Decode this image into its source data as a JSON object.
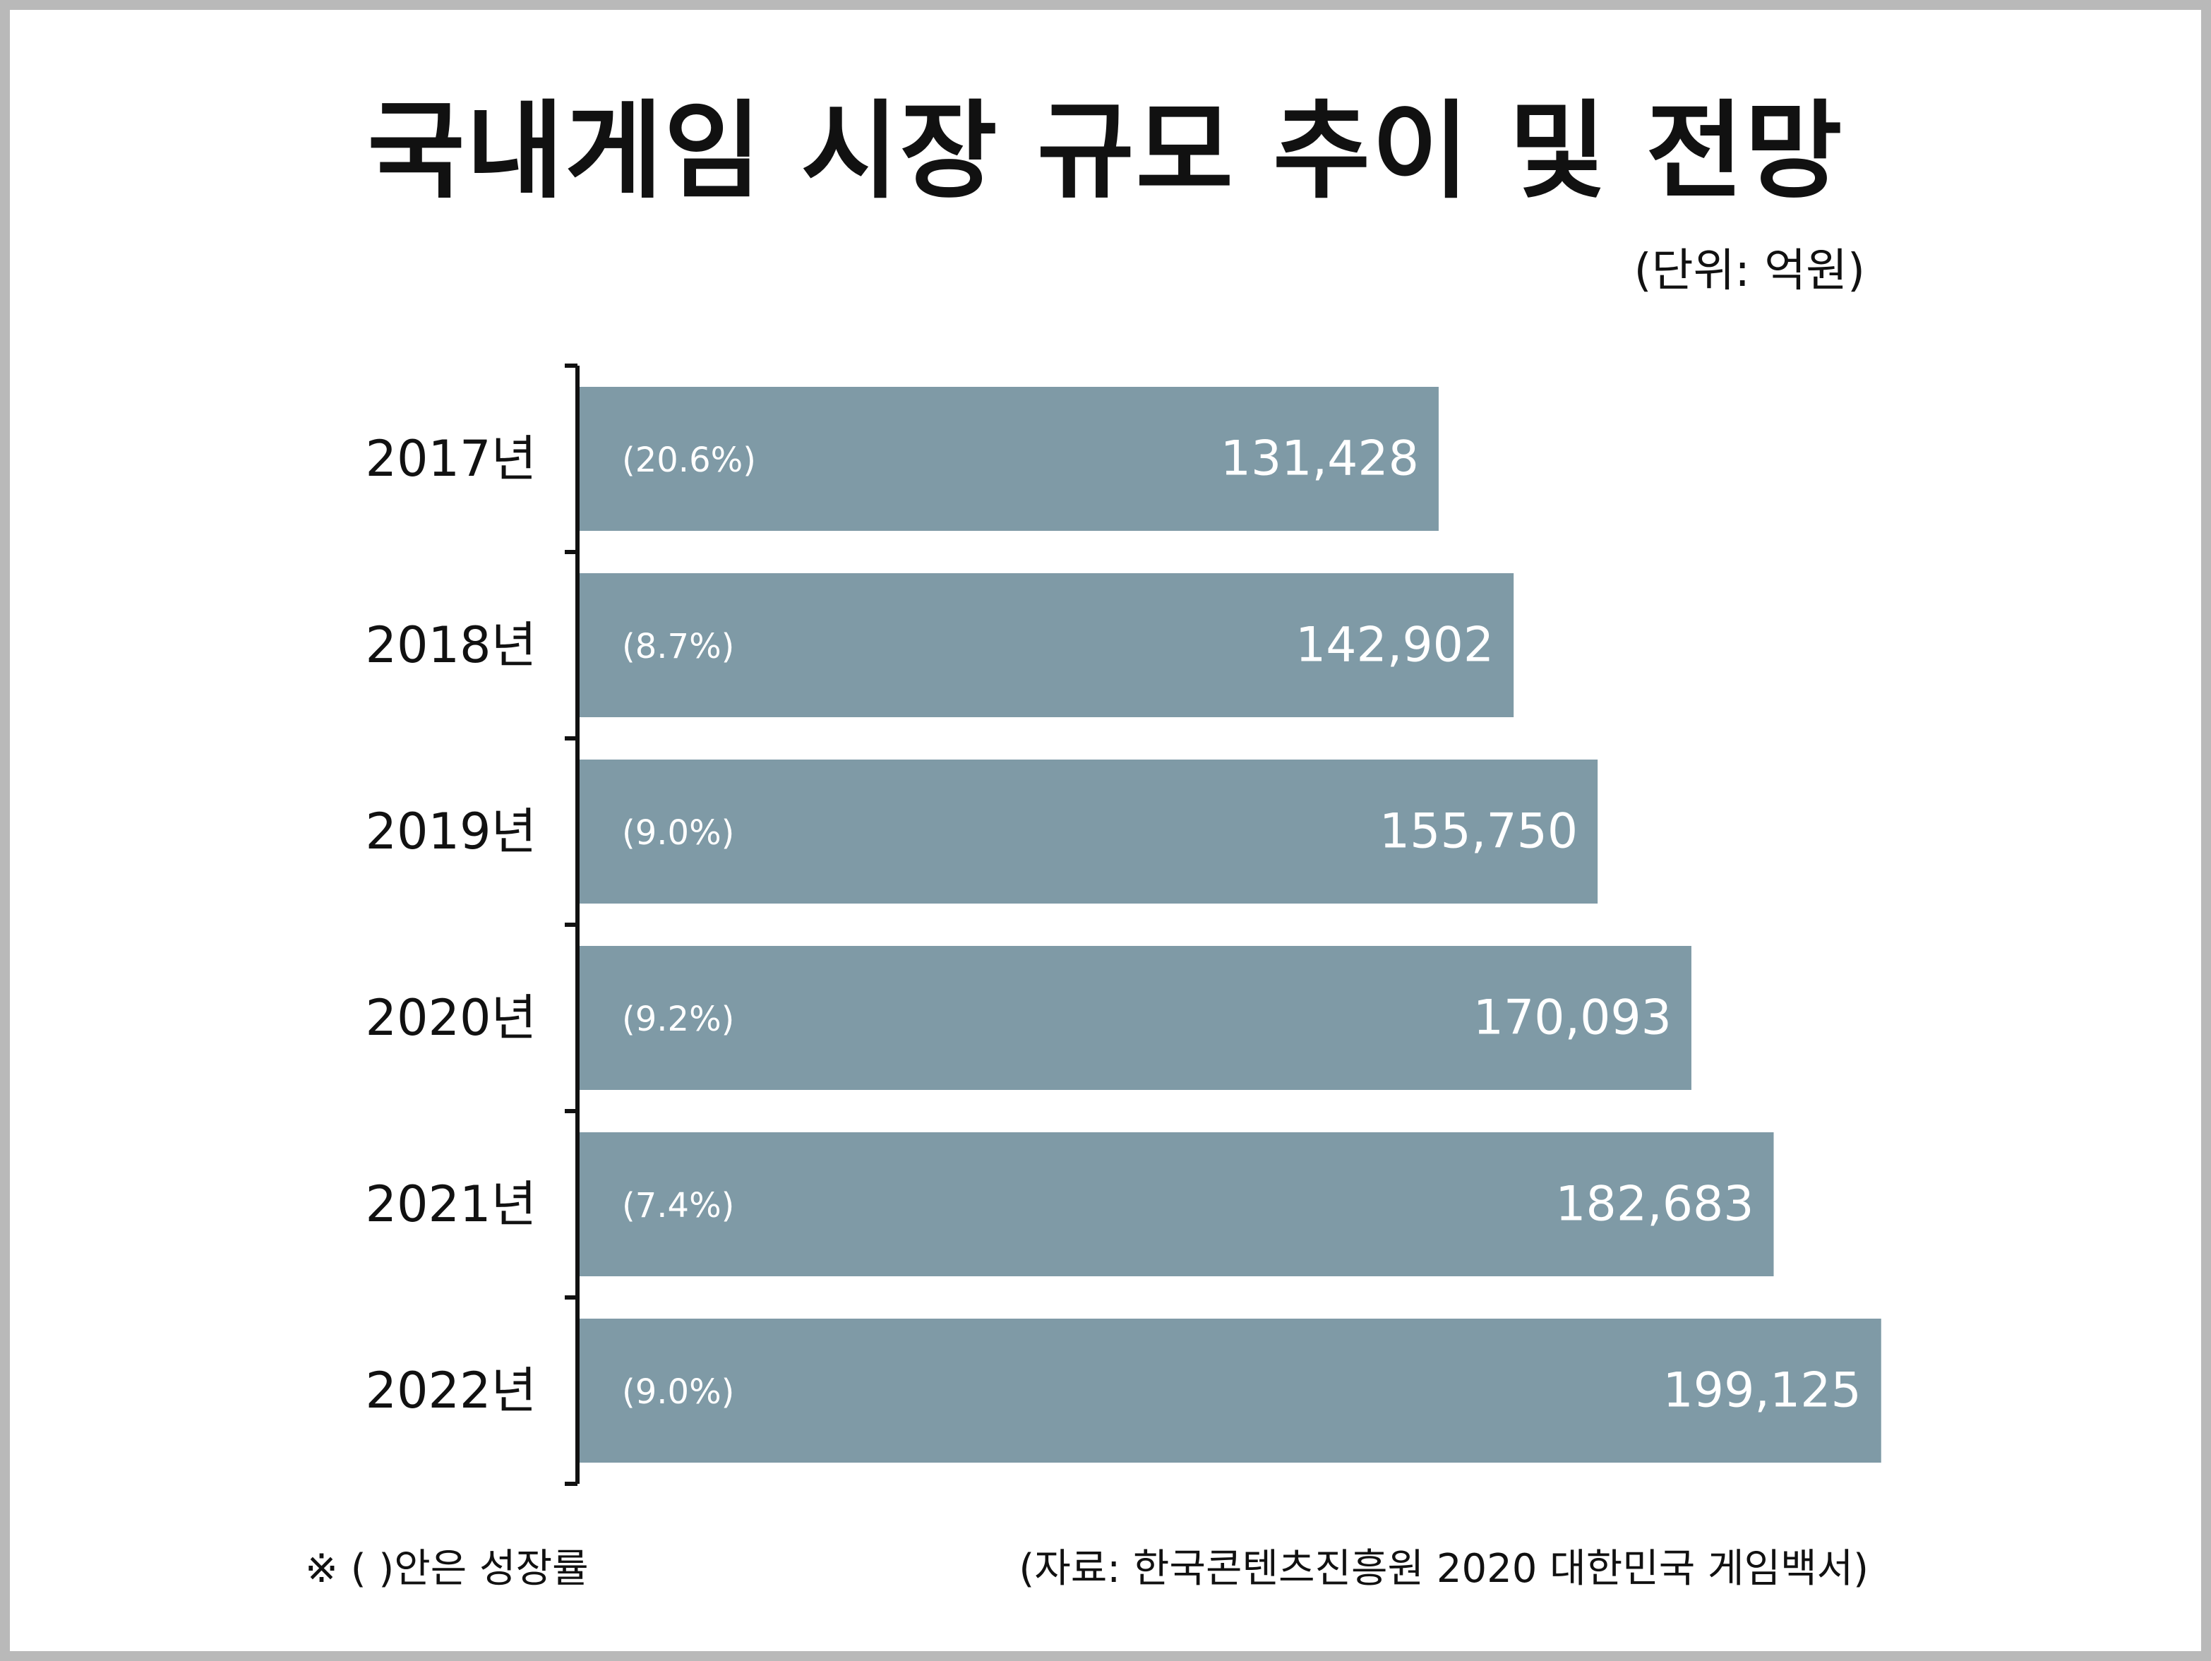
{
  "title": "국내게임 시장 규모 추이 및 전망",
  "unit": "(단위: 억원)",
  "note": "※ ( )안은 성장률",
  "source": "(자료: 한국콘텐츠진흥원 2020 대한민국 게임백서)",
  "colors": {
    "bar": "#7f9aa6",
    "text": "#111111",
    "bar_text": "#ffffff",
    "frame": "#b9b9b9"
  },
  "chart_data": {
    "type": "bar",
    "orientation": "horizontal",
    "categories": [
      "2017년",
      "2018년",
      "2019년",
      "2020년",
      "2021년",
      "2022년"
    ],
    "values": [
      131428,
      142902,
      155750,
      170093,
      182683,
      199125
    ],
    "value_labels": [
      "131,428",
      "142,902",
      "155,750",
      "170,093",
      "182,683",
      "199,125"
    ],
    "growth_labels": [
      "(20.6%)",
      "(8.7%)",
      "(9.0%)",
      "(9.2%)",
      "(7.4%)",
      "(9.0%)"
    ],
    "title": "국내게임 시장 규모 추이 및 전망",
    "xlabel": "",
    "ylabel": "",
    "xlim": [
      0,
      270000
    ],
    "grid": false,
    "legend": "none"
  }
}
